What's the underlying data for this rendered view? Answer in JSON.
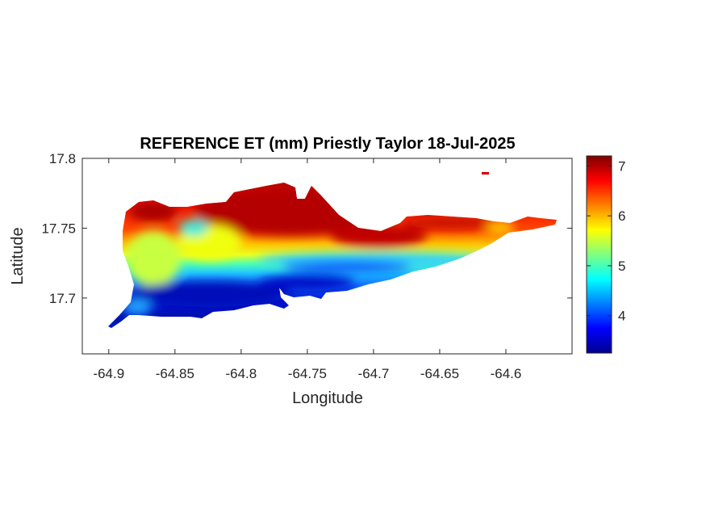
{
  "chart_data": {
    "type": "heatmap",
    "title": "REFERENCE ET (mm) Priestly Taylor 18-Jul-2025",
    "xlabel": "Longitude",
    "ylabel": "Latitude",
    "xlim": [
      -64.92,
      -64.55
    ],
    "ylim": [
      17.66,
      17.8
    ],
    "x_ticks": [
      -64.9,
      -64.85,
      -64.8,
      -64.75,
      -64.7,
      -64.65,
      -64.6
    ],
    "x_tick_labels": [
      "-64.9",
      "-64.85",
      "-64.8",
      "-64.75",
      "-64.7",
      "-64.65",
      "-64.6"
    ],
    "y_ticks": [
      17.7,
      17.75,
      17.8
    ],
    "y_tick_labels": [
      "17.7",
      "17.75",
      "17.8"
    ],
    "colorbar": {
      "colormap": "jet",
      "range": [
        3.25,
        7.2
      ],
      "ticks": [
        4,
        5,
        6,
        7
      ],
      "tick_labels": [
        "4",
        "5",
        "6",
        "7"
      ],
      "placement": "right"
    },
    "bands": [
      {
        "range": "4-4.5",
        "color": "#0a20d8"
      },
      {
        "range": "5",
        "color": "#28e0e0"
      },
      {
        "range": "5.5-6",
        "color": "#f4f00a"
      },
      {
        "range": "6.5",
        "color": "#ff2a00"
      },
      {
        "range": "7",
        "color": "#c00000"
      }
    ],
    "grid": false
  }
}
